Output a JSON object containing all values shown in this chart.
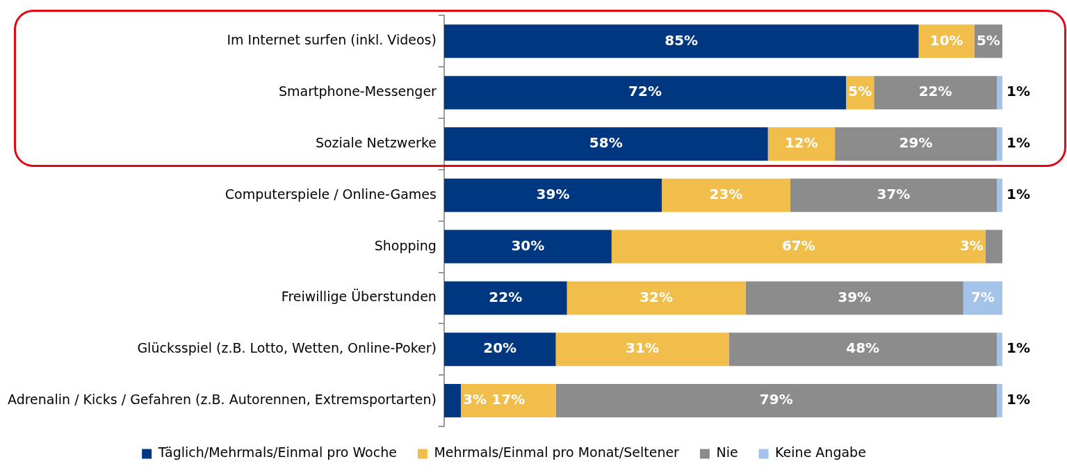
{
  "chart_data": {
    "type": "bar",
    "orientation": "horizontal",
    "stacked": true,
    "legend": "bottom",
    "categories": [
      "Im Internet surfen (inkl. Videos)",
      "Smartphone-Messenger",
      "Soziale Netzwerke",
      "Computerspiele / Online-Games",
      "Shopping",
      "Freiwillige Überstunden",
      "Glücksspiel (z.B. Lotto, Wetten, Online-Poker)",
      "Adrenalin / Kicks / Gefahren (z.B. Autorennen, Extremsportarten)"
    ],
    "series": [
      {
        "name": "Täglich/Mehrmals/Einmal pro Woche",
        "color": "#003781",
        "values": [
          85,
          72,
          58,
          39,
          30,
          22,
          20,
          3
        ],
        "value_labels": [
          "85%",
          "72%",
          "58%",
          "39%",
          "30%",
          "22%",
          "20%",
          "3%"
        ]
      },
      {
        "name": "Mehrmals/Einmal pro Monat/Seltener",
        "color": "#f1be4b",
        "values": [
          10,
          5,
          12,
          23,
          67,
          32,
          31,
          17
        ],
        "value_labels": [
          "10%",
          "5%",
          "12%",
          "23%",
          "67%",
          "32%",
          "31%",
          "17%"
        ]
      },
      {
        "name": "Nie",
        "color": "#8c8c8c",
        "values": [
          5,
          22,
          29,
          37,
          3,
          39,
          48,
          79
        ],
        "value_labels": [
          "5%",
          "22%",
          "29%",
          "37%",
          "3%",
          "39%",
          "48%",
          "79%"
        ]
      },
      {
        "name": "Keine Angabe",
        "color": "#a3c3e8",
        "values": [
          null,
          1,
          1,
          1,
          null,
          7,
          1,
          1
        ],
        "value_labels": [
          null,
          "1%",
          "1%",
          "1%",
          null,
          "7%",
          "1%",
          "1%"
        ]
      }
    ]
  }
}
